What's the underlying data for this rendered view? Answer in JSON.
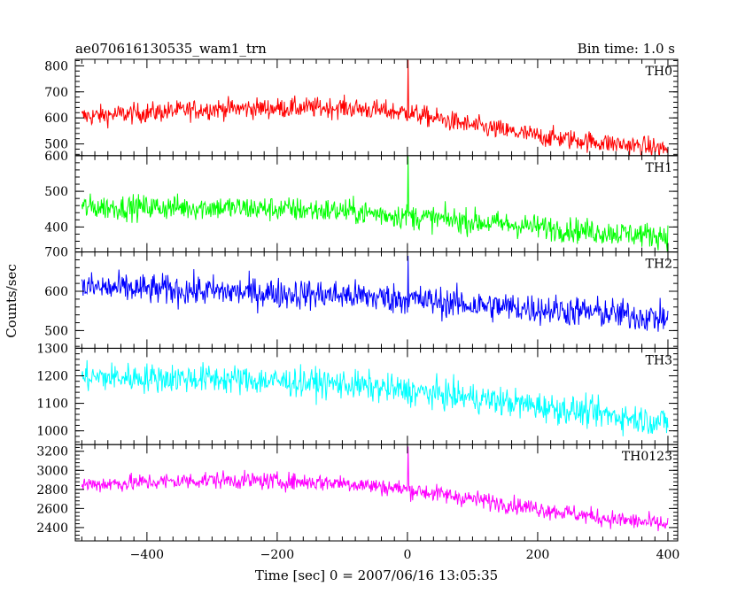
{
  "header": {
    "left": "ae070616130535_wam1_trn",
    "right": "Bin time: 1.0 s"
  },
  "chart_data": {
    "type": "line",
    "ylabel": "Counts/sec",
    "xlabel": "Time [sec] 0 = 2007/06/16 13:05:35",
    "xlim": [
      -510,
      415
    ],
    "x_ticks": [
      -400,
      -200,
      0,
      200,
      400
    ],
    "x_tick_labels": [
      "−400",
      "−200",
      "0",
      "200",
      "400"
    ],
    "bin_time": 1.0,
    "panels": [
      {
        "label": "TH0",
        "color": "#ff0000",
        "ylim": [
          455,
          825
        ],
        "yticks": [
          500,
          600,
          700,
          800
        ],
        "ytick_labels": [
          "500",
          "600",
          "700",
          "800"
        ],
        "trend_x": [
          -500,
          -300,
          -100,
          0,
          100,
          200,
          300,
          400
        ],
        "trend_y": [
          605,
          635,
          640,
          620,
          570,
          530,
          505,
          480
        ],
        "noise": 28,
        "spike_x": 1,
        "spike_y": 822
      },
      {
        "label": "TH1",
        "color": "#00ff00",
        "ylim": [
          330,
          600
        ],
        "yticks": [
          400,
          500,
          600
        ],
        "ytick_labels": [
          "400",
          "500",
          "600"
        ],
        "trend_x": [
          -500,
          -300,
          -100,
          0,
          100,
          200,
          300,
          400
        ],
        "trend_y": [
          455,
          455,
          445,
          430,
          415,
          400,
          385,
          375
        ],
        "noise": 25,
        "spike_x": 1,
        "spike_y": 598
      },
      {
        "label": "TH2",
        "color": "#0000ff",
        "ylim": [
          455,
          700
        ],
        "yticks": [
          500,
          600,
          700
        ],
        "ytick_labels": [
          "500",
          "600",
          "700"
        ],
        "trend_x": [
          -500,
          -300,
          -100,
          0,
          100,
          200,
          300,
          400
        ],
        "trend_y": [
          610,
          600,
          590,
          580,
          565,
          555,
          545,
          530
        ],
        "noise": 28,
        "spike_x": 1,
        "spike_y": 690
      },
      {
        "label": "TH3",
        "color": "#00ffff",
        "ylim": [
          950,
          1300
        ],
        "yticks": [
          1000,
          1100,
          1200,
          1300
        ],
        "ytick_labels": [
          "1000",
          "1100",
          "1200",
          "1300"
        ],
        "trend_x": [
          -500,
          -300,
          -100,
          0,
          100,
          200,
          300,
          400
        ],
        "trend_y": [
          1195,
          1190,
          1170,
          1145,
          1120,
          1090,
          1060,
          1030
        ],
        "noise": 38,
        "spike_x": null,
        "spike_y": null
      },
      {
        "label": "TH0123",
        "color": "#ff00ff",
        "ylim": [
          2260,
          3270
        ],
        "yticks": [
          2400,
          2600,
          2800,
          3000,
          3200
        ],
        "ytick_labels": [
          "2400",
          "2600",
          "2800",
          "3000",
          "3200"
        ],
        "trend_x": [
          -500,
          -300,
          -100,
          0,
          100,
          200,
          300,
          400
        ],
        "trend_y": [
          2850,
          2900,
          2870,
          2800,
          2700,
          2600,
          2500,
          2430
        ],
        "noise": 65,
        "spike_x": 1,
        "spike_y": 3250
      }
    ]
  }
}
